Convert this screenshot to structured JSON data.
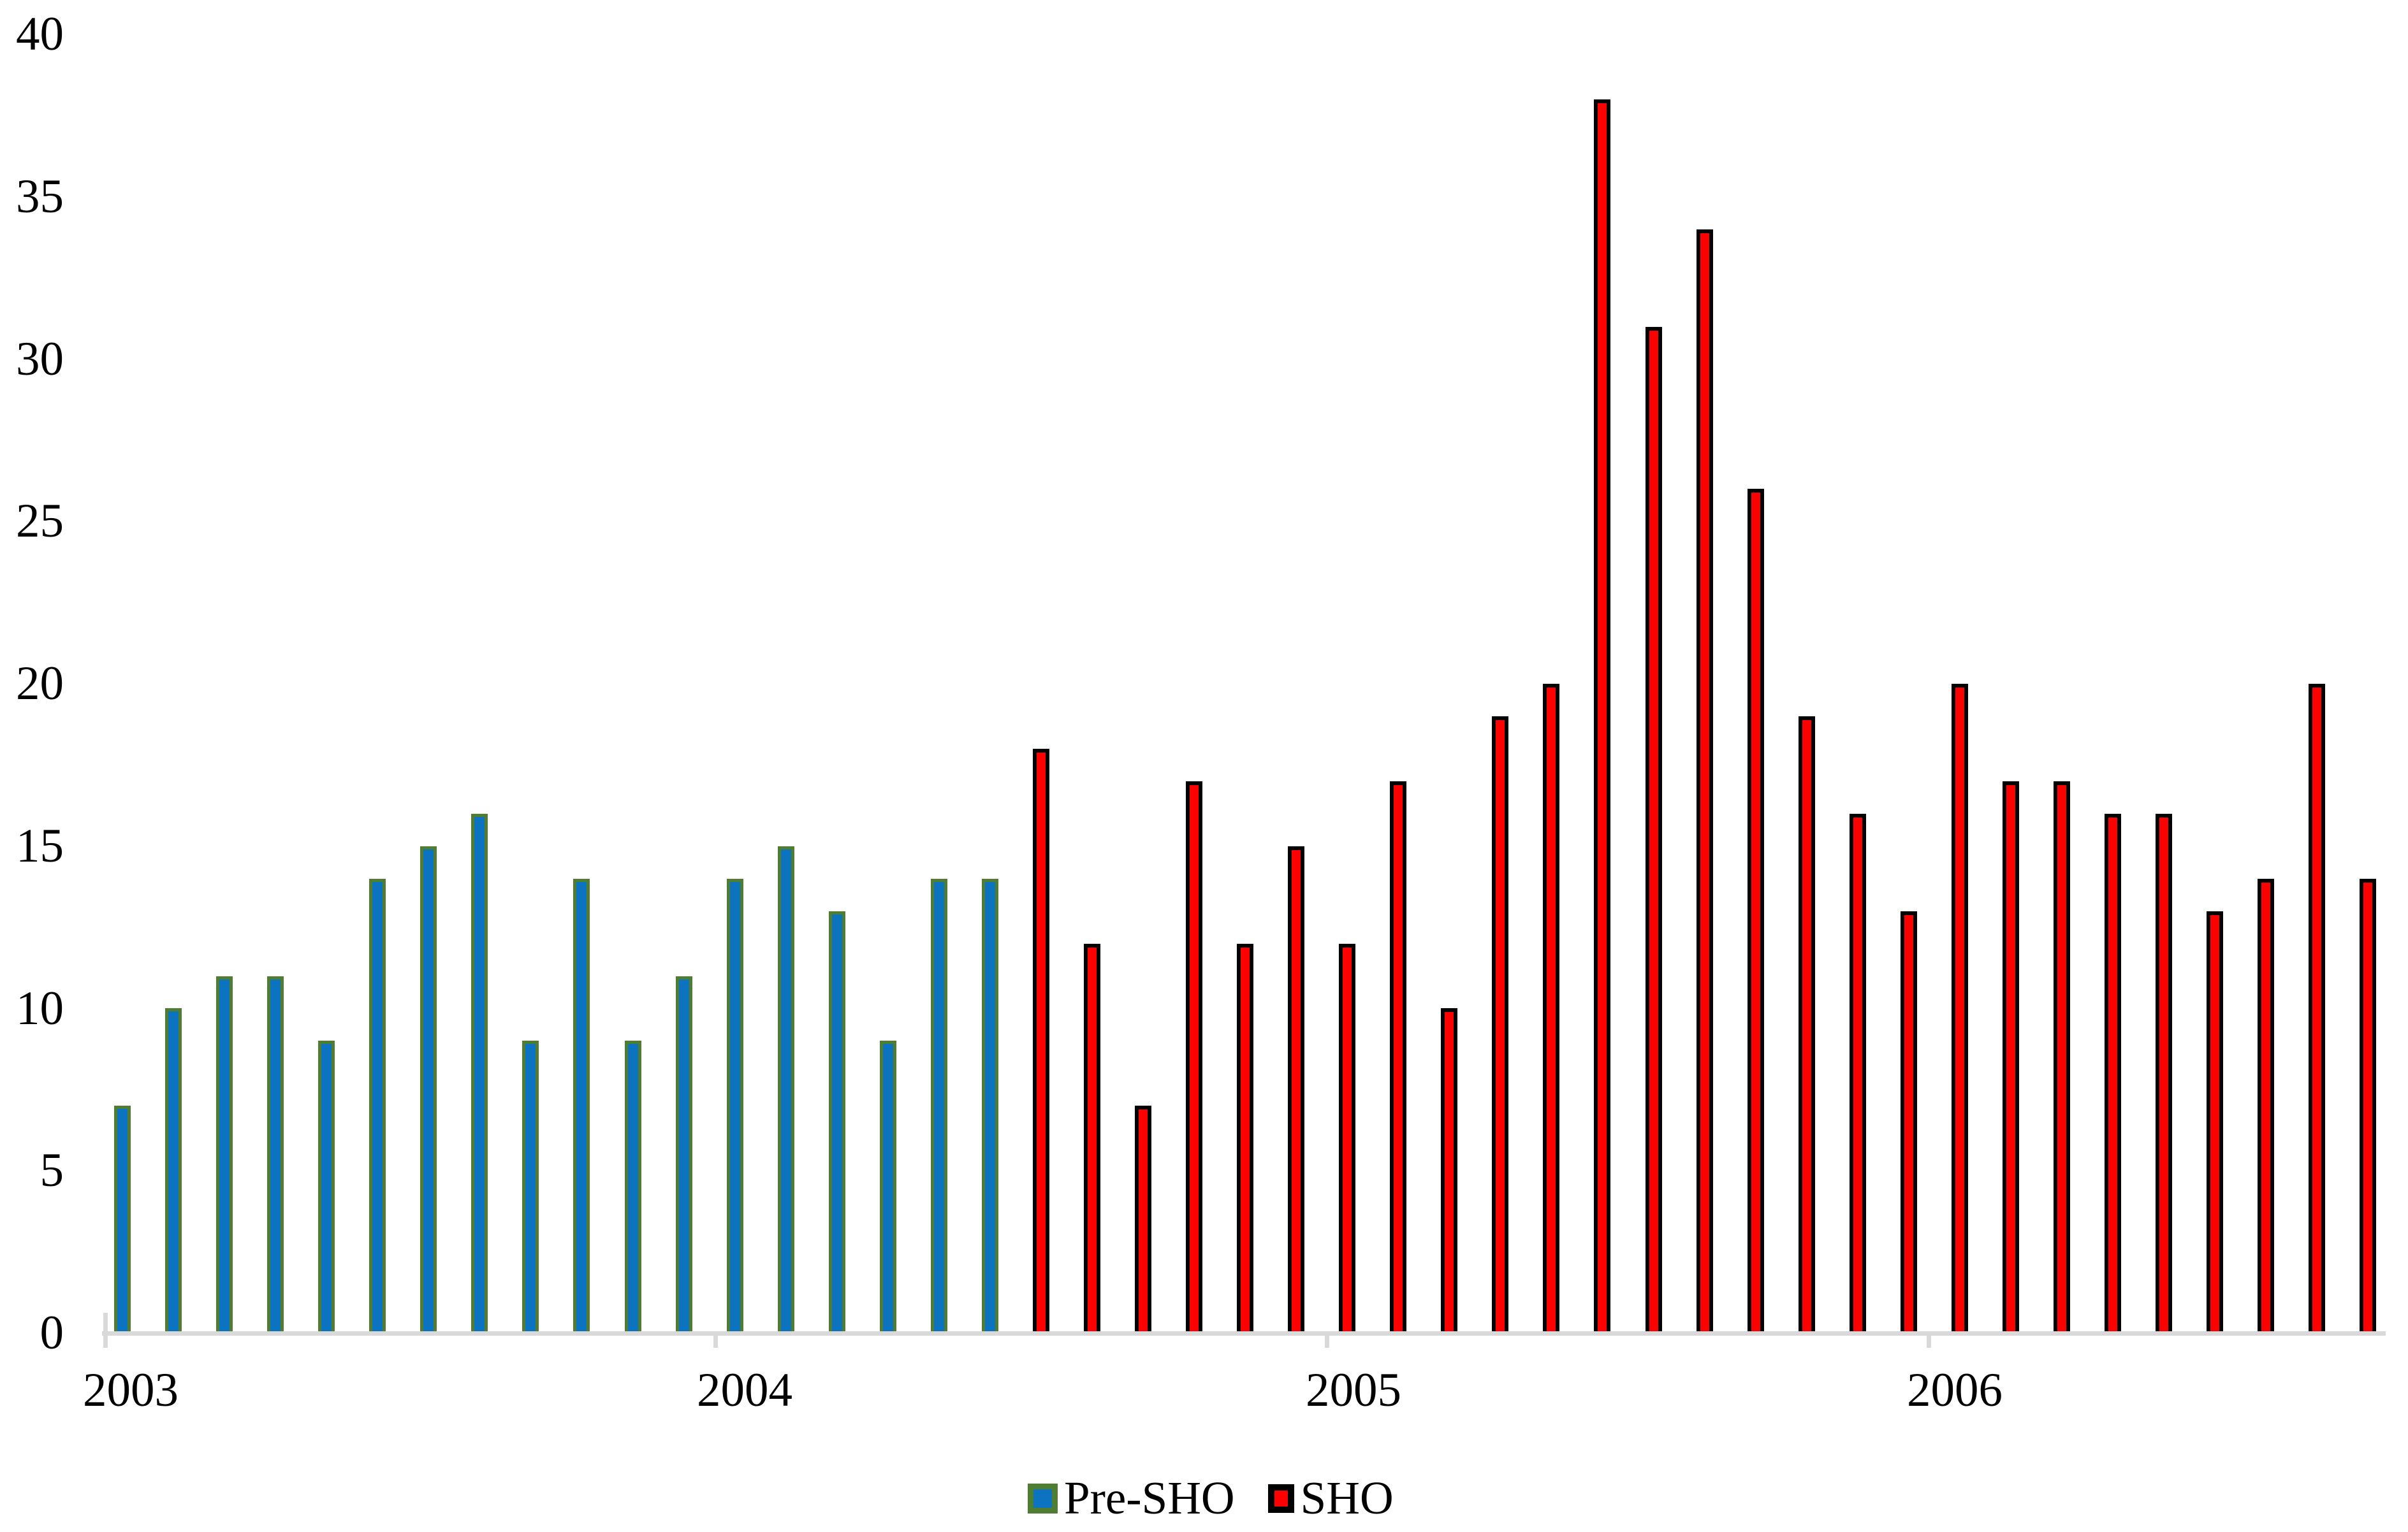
{
  "chart_data": {
    "type": "bar",
    "title": "",
    "y_axis": {
      "min": 0,
      "max": 40,
      "tick_step": 5,
      "tick_labels": [
        "0",
        "5",
        "10",
        "15",
        "20",
        "25",
        "30",
        "35",
        "40"
      ]
    },
    "x_axis": {
      "labels": [
        "2003",
        "2004",
        "2005",
        "2006"
      ],
      "unit": "month"
    },
    "series": [
      {
        "name": "Pre-SHO",
        "fill_color": "#0C73C0",
        "border_color": "#4F7D31",
        "values": [
          7,
          10,
          11,
          11,
          9,
          14,
          15,
          16,
          9,
          14,
          9,
          11,
          14,
          15,
          13,
          9,
          14,
          14
        ]
      },
      {
        "name": "SHO",
        "fill_color": "#FF0000",
        "border_color": "#000000",
        "values": [
          18,
          12,
          7,
          17,
          12,
          15,
          12,
          17,
          10,
          19,
          20,
          38,
          31,
          34,
          26,
          19,
          16,
          13,
          20,
          17,
          17,
          16,
          16,
          13,
          14,
          20,
          14
        ]
      }
    ],
    "legend": {
      "items": [
        "Pre-SHO",
        "SHO"
      ],
      "position": "bottom-center"
    },
    "grid": false,
    "axis_color": "#D9D9D9",
    "text_color": "#000000",
    "background_color": "#FFFFFF"
  }
}
